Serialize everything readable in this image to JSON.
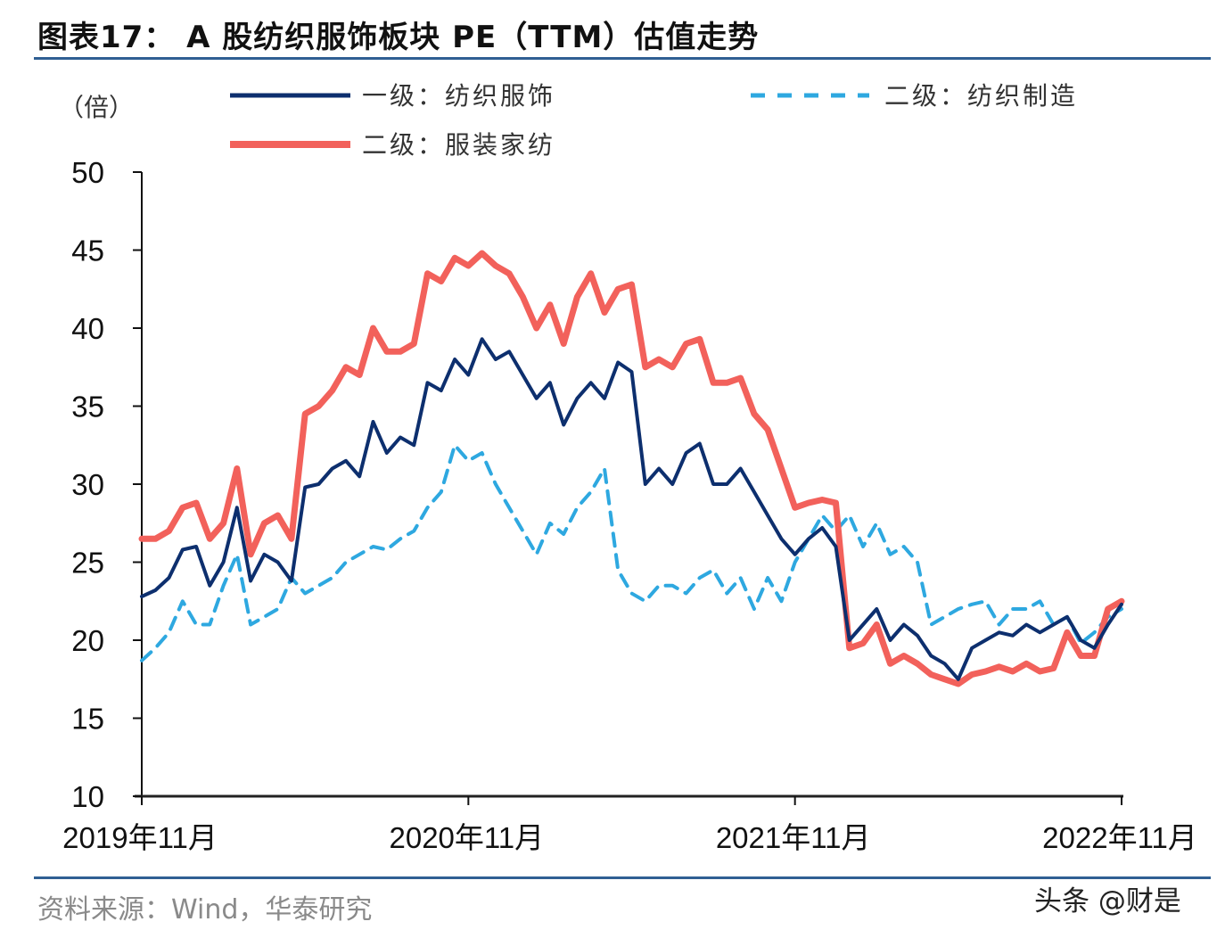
{
  "header": {
    "title": "图表17： A 股纺织服饰板块 PE（TTM）估值走势"
  },
  "footer": {
    "source": "资料来源：Wind，华泰研究",
    "watermark": "头条 @财是"
  },
  "chart_data": {
    "type": "line",
    "title": "图表17： A 股纺织服饰板块 PE（TTM）估值走势",
    "ylabel": "（倍）",
    "xlabel": "",
    "ylim": [
      10,
      50
    ],
    "yticks": [
      10,
      15,
      20,
      25,
      30,
      35,
      40,
      45,
      50
    ],
    "xlim": [
      0,
      36
    ],
    "xticks": [
      {
        "x": 0,
        "label": "2019年11月"
      },
      {
        "x": 12,
        "label": "2020年11月"
      },
      {
        "x": 24,
        "label": "2021年11月"
      },
      {
        "x": 36,
        "label": "2022年11月"
      }
    ],
    "x_unit": "months since 2019-11",
    "grid": false,
    "legend_placement": "top",
    "legend": [
      {
        "label": "一级：纺织服饰",
        "series": 0
      },
      {
        "label": "二级：纺织制造",
        "series": 1
      },
      {
        "label": "二级：服装家纺",
        "series": 2
      }
    ],
    "series": [
      {
        "name": "一级：纺织服饰",
        "color": "#0d2f6e",
        "style": "solid",
        "x": [
          0,
          0.5,
          1,
          1.5,
          2,
          2.5,
          3,
          3.5,
          4,
          4.5,
          5,
          5.5,
          6,
          6.5,
          7,
          7.5,
          8,
          8.5,
          9,
          9.5,
          10,
          10.5,
          11,
          11.5,
          12,
          12.5,
          13,
          13.5,
          14,
          14.5,
          15,
          15.5,
          16,
          16.5,
          17,
          17.5,
          18,
          18.5,
          19,
          19.5,
          20,
          20.5,
          21,
          21.5,
          22,
          22.5,
          23,
          23.5,
          24,
          24.5,
          25,
          25.5,
          26,
          26.5,
          27,
          27.5,
          28,
          28.5,
          29,
          29.5,
          30,
          30.5,
          31,
          31.5,
          32,
          32.5,
          33,
          33.5,
          34,
          34.5,
          35,
          35.5,
          36
        ],
        "values": [
          22.8,
          23.2,
          24.0,
          25.8,
          26.0,
          23.5,
          25.0,
          28.5,
          23.8,
          25.5,
          25.0,
          23.8,
          29.8,
          30.0,
          31.0,
          31.5,
          30.5,
          34.0,
          32.0,
          33.0,
          32.5,
          36.5,
          36.0,
          38.0,
          37.0,
          39.3,
          38.0,
          38.5,
          37.0,
          35.5,
          36.5,
          33.8,
          35.5,
          36.5,
          35.5,
          37.8,
          37.2,
          30.0,
          31.0,
          30.0,
          32.0,
          32.6,
          30.0,
          30.0,
          31.0,
          29.5,
          28.0,
          26.5,
          25.5,
          26.5,
          27.2,
          26.0,
          20.0,
          21.0,
          22.0,
          20.0,
          21.0,
          20.3,
          19.0,
          18.5,
          17.5,
          19.5,
          20.0,
          20.5,
          20.3,
          21.0,
          20.5,
          21.0,
          21.5,
          20.0,
          19.5,
          21.0,
          22.3
        ]
      },
      {
        "name": "二级：纺织制造",
        "color": "#2ea8e0",
        "style": "dashed",
        "x": [
          0,
          0.5,
          1,
          1.5,
          2,
          2.5,
          3,
          3.5,
          4,
          4.5,
          5,
          5.5,
          6,
          6.5,
          7,
          7.5,
          8,
          8.5,
          9,
          9.5,
          10,
          10.5,
          11,
          11.5,
          12,
          12.5,
          13,
          13.5,
          14,
          14.5,
          15,
          15.5,
          16,
          16.5,
          17,
          17.5,
          18,
          18.5,
          19,
          19.5,
          20,
          20.5,
          21,
          21.5,
          22,
          22.5,
          23,
          23.5,
          24,
          24.5,
          25,
          25.5,
          26,
          26.5,
          27,
          27.5,
          28,
          28.5,
          29,
          29.5,
          30,
          30.5,
          31,
          31.5,
          32,
          32.5,
          33,
          33.5,
          34,
          34.5,
          35,
          35.5,
          36
        ],
        "values": [
          18.7,
          19.5,
          20.5,
          22.5,
          21.0,
          21.0,
          23.5,
          25.5,
          21.0,
          21.5,
          22.0,
          24.0,
          23.0,
          23.5,
          24.0,
          25.0,
          25.5,
          26.0,
          25.8,
          26.5,
          27.0,
          28.5,
          29.5,
          32.5,
          31.5,
          32.0,
          30.0,
          28.5,
          27.0,
          25.5,
          27.5,
          26.8,
          28.5,
          29.5,
          31.0,
          24.5,
          23.0,
          22.5,
          23.5,
          23.5,
          23.0,
          24.0,
          24.5,
          23.0,
          24.0,
          22.0,
          24.0,
          22.5,
          25.0,
          26.5,
          28.0,
          27.0,
          28.0,
          26.0,
          27.5,
          25.5,
          26.0,
          25.0,
          21.0,
          21.5,
          22.0,
          22.3,
          22.5,
          21.0,
          22.0,
          22.0,
          22.5,
          21.0,
          21.5,
          19.8,
          20.5,
          21.5,
          22.0
        ]
      },
      {
        "name": "二级：服装家纺",
        "color": "#f2615b",
        "style": "solid",
        "x": [
          0,
          0.5,
          1,
          1.5,
          2,
          2.5,
          3,
          3.5,
          4,
          4.5,
          5,
          5.5,
          6,
          6.5,
          7,
          7.5,
          8,
          8.5,
          9,
          9.5,
          10,
          10.5,
          11,
          11.5,
          12,
          12.5,
          13,
          13.5,
          14,
          14.5,
          15,
          15.5,
          16,
          16.5,
          17,
          17.5,
          18,
          18.5,
          19,
          19.5,
          20,
          20.5,
          21,
          21.5,
          22,
          22.5,
          23,
          23.5,
          24,
          24.5,
          25,
          25.5,
          26,
          26.5,
          27,
          27.5,
          28,
          28.5,
          29,
          29.5,
          30,
          30.5,
          31,
          31.5,
          32,
          32.5,
          33,
          33.5,
          34,
          34.5,
          35,
          35.5,
          36
        ],
        "values": [
          26.5,
          26.5,
          27.0,
          28.5,
          28.8,
          26.5,
          27.5,
          31.0,
          25.5,
          27.5,
          28.0,
          26.5,
          34.5,
          35.0,
          36.0,
          37.5,
          37.0,
          40.0,
          38.5,
          38.5,
          39.0,
          43.5,
          43.0,
          44.5,
          44.0,
          44.8,
          44.0,
          43.5,
          42.0,
          40.0,
          41.5,
          39.0,
          42.0,
          43.5,
          41.0,
          42.5,
          42.8,
          37.5,
          38.0,
          37.5,
          39.0,
          39.3,
          36.5,
          36.5,
          36.8,
          34.5,
          33.5,
          31.0,
          28.5,
          28.8,
          29.0,
          28.8,
          19.5,
          19.8,
          21.0,
          18.5,
          19.0,
          18.5,
          17.8,
          17.5,
          17.2,
          17.8,
          18.0,
          18.3,
          18.0,
          18.5,
          18.0,
          18.2,
          20.5,
          19.0,
          19.0,
          22.0,
          22.5
        ]
      }
    ]
  }
}
